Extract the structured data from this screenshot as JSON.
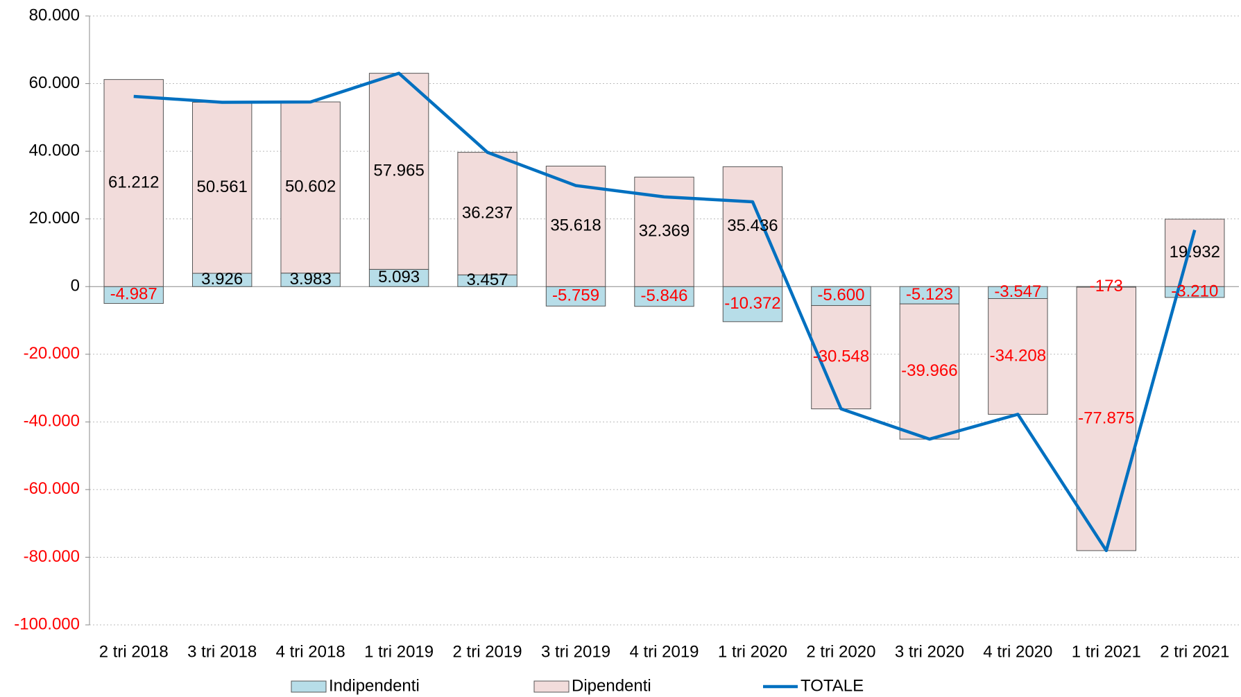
{
  "chart_data": {
    "type": "bar",
    "categories": [
      "2 tri 2018",
      "3 tri 2018",
      "4 tri 2018",
      "1 tri 2019",
      "2 tri 2019",
      "3 tri 2019",
      "4 tri 2019",
      "1 tri 2020",
      "2 tri 2020",
      "3 tri 2020",
      "4 tri 2020",
      "1 tri 2021",
      "2 tri 2021"
    ],
    "series": [
      {
        "name": "Indipendenti",
        "type": "bar",
        "color": "#b7dde8",
        "values": [
          -4987,
          3926,
          3983,
          5093,
          3457,
          -5759,
          -5846,
          -10372,
          -5600,
          -5123,
          -3547,
          -173,
          -3210
        ],
        "value_labels": [
          "-4.987",
          "3.926",
          "3.983",
          "5.093",
          "3.457",
          "-5.759",
          "-5.846",
          "-10.372",
          "-5.600",
          "-5.123",
          "-3.547",
          "-173",
          "-3.210"
        ]
      },
      {
        "name": "Dipendenti",
        "type": "bar",
        "color": "#f2dcdb",
        "values": [
          61212,
          50561,
          50602,
          57965,
          36237,
          35618,
          32369,
          35436,
          -30548,
          -39966,
          -34208,
          -77875,
          19932
        ],
        "value_labels": [
          "61.212",
          "50.561",
          "50.602",
          "57.965",
          "36.237",
          "35.618",
          "32.369",
          "35.436",
          "-30.548",
          "-39.966",
          "-34.208",
          "-77.875",
          "19.932"
        ]
      },
      {
        "name": "TOTALE",
        "type": "line",
        "color": "#0070c0",
        "values": [
          56225,
          54487,
          54585,
          63058,
          39694,
          29859,
          26523,
          25064,
          -36148,
          -45089,
          -37755,
          -78048,
          16722
        ]
      }
    ],
    "ylim": [
      -100000,
      80000
    ],
    "yticks": [
      {
        "value": -100000,
        "label": "-100.000"
      },
      {
        "value": -80000,
        "label": "-80.000"
      },
      {
        "value": -60000,
        "label": "-60.000"
      },
      {
        "value": -40000,
        "label": "-40.000"
      },
      {
        "value": -20000,
        "label": "-20.000"
      },
      0,
      {
        "value": 20000,
        "label": "20.000"
      },
      {
        "value": 40000,
        "label": "40.000"
      },
      {
        "value": 60000,
        "label": "60.000"
      },
      {
        "value": 80000,
        "label": "80.000"
      }
    ],
    "grid": true,
    "legend": "bottom"
  }
}
